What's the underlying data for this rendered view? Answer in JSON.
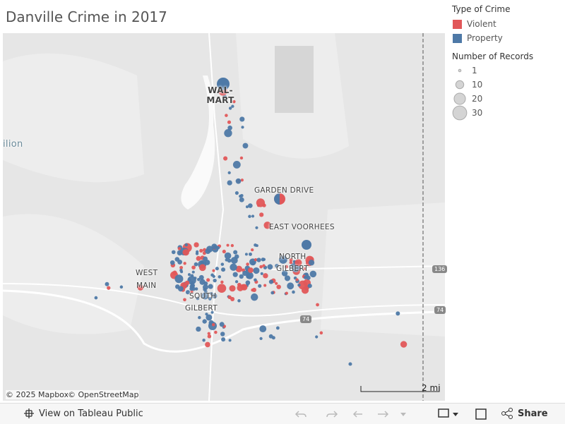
{
  "title": "Danville Crime in 2017",
  "map": {
    "labels": {
      "walmart": "WAL-MART",
      "garden_drive": "GARDEN DRIVE",
      "east_voorhees": "EAST VOORHEES",
      "north": "NORTH",
      "gilbert": "GILBERT",
      "west": "WEST",
      "main": "MAIN",
      "south": "SOUTH",
      "south_gilbert": "GILBERT",
      "city_fragment": "ilion"
    },
    "shields": [
      "136",
      "74",
      "74"
    ],
    "attribution": [
      "© 2025 Mapbox",
      "© OpenStreetMap"
    ],
    "scale": "2 mi"
  },
  "legend": {
    "type_title": "Type of Crime",
    "types": [
      {
        "name": "Violent",
        "color": "#e15759"
      },
      {
        "name": "Property",
        "color": "#4e79a7"
      }
    ],
    "size_title": "Number of Records",
    "sizes": [
      1,
      10,
      20,
      30
    ]
  },
  "toolbar": {
    "view": "View on Tableau Public",
    "share": "Share"
  }
}
